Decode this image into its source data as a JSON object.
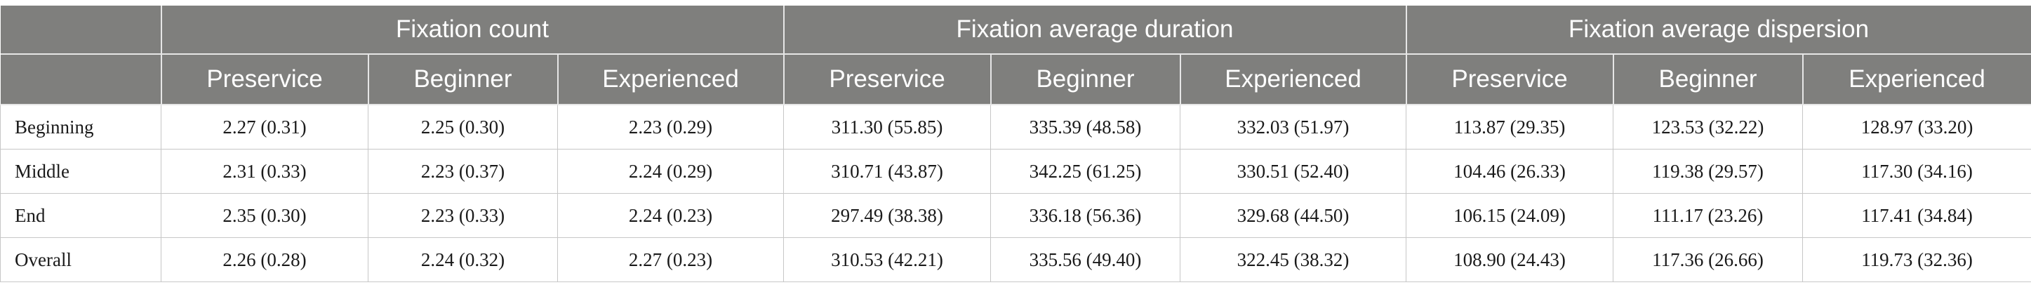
{
  "header": {
    "groups": [
      "Fixation count",
      "Fixation average duration",
      "Fixation average dispersion"
    ],
    "subheaders": [
      "Preservice",
      "Beginner",
      "Experienced",
      "Preservice",
      "Beginner",
      "Experienced",
      "Preservice",
      "Beginner",
      "Experienced"
    ]
  },
  "rows": [
    {
      "label": "Beginning",
      "cells": [
        "2.27 (0.31)",
        "2.25 (0.30)",
        "2.23 (0.29)",
        "311.30 (55.85)",
        "335.39 (48.58)",
        "332.03 (51.97)",
        "113.87 (29.35)",
        "123.53 (32.22)",
        "128.97 (33.20)"
      ]
    },
    {
      "label": "Middle",
      "cells": [
        "2.31 (0.33)",
        "2.23 (0.37)",
        "2.24 (0.29)",
        "310.71 (43.87)",
        "342.25 (61.25)",
        "330.51 (52.40)",
        "104.46 (26.33)",
        "119.38 (29.57)",
        "117.30 (34.16)"
      ]
    },
    {
      "label": "End",
      "cells": [
        "2.35 (0.30)",
        "2.23 (0.33)",
        "2.24 (0.23)",
        "297.49 (38.38)",
        "336.18 (56.36)",
        "329.68 (44.50)",
        "106.15 (24.09)",
        "111.17 (23.26)",
        "117.41 (34.84)"
      ]
    },
    {
      "label": "Overall",
      "cells": [
        "2.26 (0.28)",
        "2.24 (0.32)",
        "2.27 (0.23)",
        "310.53 (42.21)",
        "335.56 (49.40)",
        "322.45 (38.32)",
        "108.90 (24.43)",
        "117.36 (26.66)",
        "119.73 (32.36)"
      ]
    }
  ],
  "colors": {
    "header_bg": "#7f7f7d",
    "header_text": "#ffffff",
    "grid": "#c7c7c7"
  }
}
